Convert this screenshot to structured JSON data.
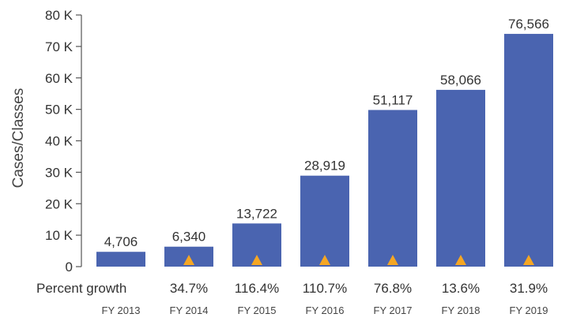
{
  "chart_data": {
    "type": "bar",
    "title": "",
    "xlabel": "",
    "ylabel": "Cases/Classes",
    "ylim": [
      0,
      80000
    ],
    "yticks": [
      0,
      10000,
      20000,
      30000,
      40000,
      50000,
      60000,
      70000,
      80000
    ],
    "ytick_labels": [
      "0",
      "10 K",
      "20 K",
      "30 K",
      "40 K",
      "50 K",
      "60 K",
      "70 K",
      "80 K"
    ],
    "grid": false,
    "legend": "none",
    "categories": [
      "FY 2013",
      "FY 2014",
      "FY 2015",
      "FY 2016",
      "FY 2017",
      "FY 2018",
      "FY 2019"
    ],
    "values": [
      4706,
      6340,
      13722,
      28919,
      51117,
      58066,
      76566
    ],
    "value_labels": [
      "4,706",
      "6,340",
      "13,722",
      "28,919",
      "51,117",
      "58,066",
      "76,566"
    ],
    "bar_heights_approx": [
      4706,
      6340,
      13722,
      28919,
      49800,
      56200,
      74000
    ],
    "growth_row_label": "Percent growth",
    "growth": [
      "",
      "34.7%",
      "116.4%",
      "110.7%",
      "76.8%",
      "13.6%",
      "31.9%"
    ],
    "bar_color": "#4a64b0",
    "marker_color": "#f5a623"
  }
}
